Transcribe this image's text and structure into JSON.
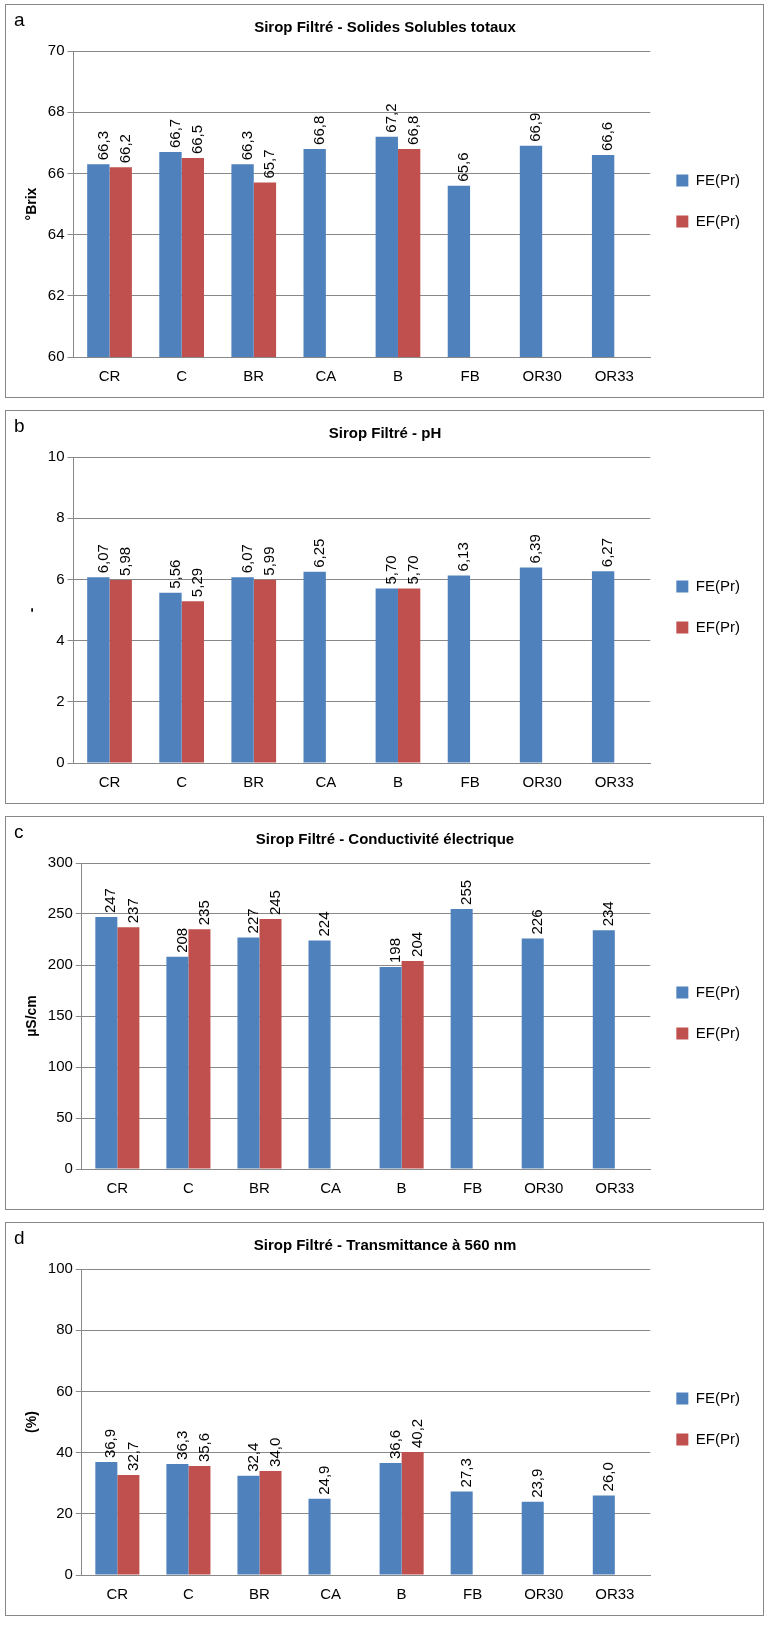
{
  "chart_data": [
    {
      "type": "bar",
      "title": "Sirop Filtré - Solides Solubles totaux",
      "ylabel": "°Brix",
      "annotations": [
        "a"
      ],
      "categories": [
        "CR",
        "C",
        "BR",
        "CA",
        "B",
        "FB",
        "OR30",
        "OR33"
      ],
      "series": [
        {
          "name": "FE(Pr)",
          "color": "#4f81bd",
          "values": [
            66.3,
            66.7,
            66.3,
            66.8,
            67.2,
            65.6,
            66.9,
            66.6
          ],
          "value_labels": [
            "66,3",
            "66,7",
            "66,3",
            "66,8",
            "67,2",
            "65,6",
            "66,9",
            "66,6"
          ]
        },
        {
          "name": "EF(Pr)",
          "color": "#c0504d",
          "values": [
            66.2,
            66.5,
            65.7,
            null,
            66.8,
            null,
            null,
            null
          ],
          "value_labels": [
            "66,2",
            "66,5",
            "65,7",
            null,
            "66,8",
            null,
            null,
            null
          ]
        }
      ],
      "ylim": [
        60,
        70
      ],
      "yticks": [
        60,
        62,
        64,
        66,
        68,
        70
      ],
      "grid": "y",
      "legend": "right"
    },
    {
      "type": "bar",
      "title": "Sirop Filtré - pH",
      "ylabel": "-",
      "annotations": [
        "b"
      ],
      "categories": [
        "CR",
        "C",
        "BR",
        "CA",
        "B",
        "FB",
        "OR30",
        "OR33"
      ],
      "series": [
        {
          "name": "FE(Pr)",
          "color": "#4f81bd",
          "values": [
            6.07,
            5.56,
            6.07,
            6.25,
            5.7,
            6.13,
            6.39,
            6.27
          ],
          "value_labels": [
            "6,07",
            "5,56",
            "6,07",
            "6,25",
            "5,70",
            "6,13",
            "6,39",
            "6,27"
          ]
        },
        {
          "name": "EF(Pr)",
          "color": "#c0504d",
          "values": [
            5.98,
            5.29,
            5.99,
            null,
            5.7,
            null,
            null,
            null
          ],
          "value_labels": [
            "5,98",
            "5,29",
            "5,99",
            null,
            "5,70",
            null,
            null,
            null
          ]
        }
      ],
      "ylim": [
        0,
        10
      ],
      "yticks": [
        0,
        2,
        4,
        6,
        8,
        10
      ],
      "grid": "y",
      "legend": "right"
    },
    {
      "type": "bar",
      "title": "Sirop Filtré - Conductivité électrique",
      "ylabel": "µS/cm",
      "annotations": [
        "c"
      ],
      "categories": [
        "CR",
        "C",
        "BR",
        "CA",
        "B",
        "FB",
        "OR30",
        "OR33"
      ],
      "series": [
        {
          "name": "FE(Pr)",
          "color": "#4f81bd",
          "values": [
            247,
            208,
            227,
            224,
            198,
            255,
            226,
            234
          ],
          "value_labels": [
            "247",
            "208",
            "227",
            "224",
            "198",
            "255",
            "226",
            "234"
          ]
        },
        {
          "name": "EF(Pr)",
          "color": "#c0504d",
          "values": [
            237,
            235,
            245,
            null,
            204,
            null,
            null,
            null
          ],
          "value_labels": [
            "237",
            "235",
            "245",
            null,
            "204",
            null,
            null,
            null
          ]
        }
      ],
      "ylim": [
        0,
        300
      ],
      "yticks": [
        0,
        50,
        100,
        150,
        200,
        250,
        300
      ],
      "grid": "y",
      "legend": "right"
    },
    {
      "type": "bar",
      "title": "Sirop Filtré - Transmittance à 560 nm",
      "ylabel": "(%)",
      "annotations": [
        "d"
      ],
      "categories": [
        "CR",
        "C",
        "BR",
        "CA",
        "B",
        "FB",
        "OR30",
        "OR33"
      ],
      "series": [
        {
          "name": "FE(Pr)",
          "color": "#4f81bd",
          "values": [
            36.9,
            36.3,
            32.4,
            24.9,
            36.6,
            27.3,
            23.9,
            26.0
          ],
          "value_labels": [
            "36,9",
            "36,3",
            "32,4",
            "24,9",
            "36,6",
            "27,3",
            "23,9",
            "26,0"
          ]
        },
        {
          "name": "EF(Pr)",
          "color": "#c0504d",
          "values": [
            32.7,
            35.6,
            34.0,
            null,
            40.2,
            null,
            null,
            null
          ],
          "value_labels": [
            "32,7",
            "35,6",
            "34,0",
            null,
            "40,2",
            null,
            null,
            null
          ]
        }
      ],
      "ylim": [
        0,
        100
      ],
      "yticks": [
        0,
        20,
        40,
        60,
        80,
        100
      ],
      "grid": "y",
      "legend": "right"
    }
  ]
}
